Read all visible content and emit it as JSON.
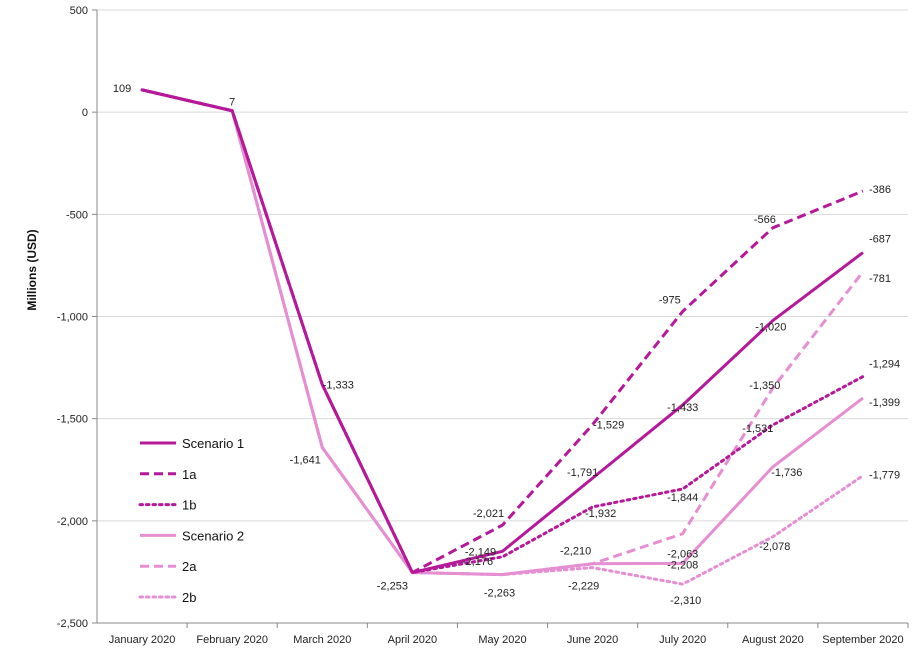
{
  "chart_data": {
    "type": "line",
    "title": "",
    "xlabel": "",
    "ylabel": "Millions (USD)",
    "ylim": [
      -2500,
      500
    ],
    "yticks": [
      500,
      0,
      -500,
      -1000,
      -1500,
      -2000,
      -2500
    ],
    "ytick_labels": [
      "500",
      "0",
      "-500",
      "-1,000",
      "-1,500",
      "-2,000",
      "-2,500"
    ],
    "grid": "horizontal",
    "legend_position": "bottom-left",
    "categories": [
      "January 2020",
      "February 2020",
      "March 2020",
      "April 2020",
      "May 2020",
      "June 2020",
      "July 2020",
      "August 2020",
      "September 2020"
    ],
    "series": [
      {
        "name": "Scenario 1",
        "color": "#b5199a",
        "style": "solid",
        "values": [
          109,
          7,
          -1333,
          -2253,
          -2149,
          -1791,
          -1433,
          -1020,
          -687
        ],
        "labels": [
          "109",
          "7",
          "-1,333",
          "-2,253",
          "-2,149",
          "-1,791",
          "-1,433",
          "-1,020",
          "-687"
        ]
      },
      {
        "name": "1a",
        "color": "#b5199a",
        "style": "dashed",
        "values": [
          109,
          7,
          -1333,
          -2253,
          -2021,
          -1529,
          -975,
          -566,
          -386
        ],
        "labels": [
          null,
          null,
          null,
          null,
          "-2,021",
          "-1,529",
          "-975",
          "-566",
          "-386"
        ]
      },
      {
        "name": "1b",
        "color": "#b5199a",
        "style": "dotted",
        "values": [
          109,
          7,
          -1333,
          -2253,
          -2176,
          -1932,
          -1844,
          -1531,
          -1294
        ],
        "labels": [
          null,
          null,
          null,
          null,
          "-2,176",
          "-1,932",
          "-1,844",
          "-1,531",
          "-1,294"
        ]
      },
      {
        "name": "Scenario 2",
        "color": "#e58ed2",
        "style": "solid",
        "values": [
          109,
          7,
          -1641,
          -2253,
          -2263,
          -2210,
          -2208,
          -1736,
          -1399
        ],
        "labels": [
          null,
          null,
          "-1,641",
          null,
          "-2,263",
          "-2,210",
          "-2,208",
          "-1,736",
          "-1,399"
        ]
      },
      {
        "name": "2a",
        "color": "#e58ed2",
        "style": "dashed",
        "values": [
          109,
          7,
          -1641,
          -2253,
          -2263,
          -2210,
          -2063,
          -1350,
          -781
        ],
        "labels": [
          null,
          null,
          null,
          null,
          null,
          null,
          "-2,063",
          "-1,350",
          "-781"
        ]
      },
      {
        "name": "2b",
        "color": "#e58ed2",
        "style": "dotted",
        "values": [
          109,
          7,
          -1641,
          -2253,
          -2263,
          -2229,
          -2310,
          -2078,
          -1779
        ],
        "labels": [
          null,
          null,
          null,
          null,
          null,
          "-2,229",
          "-2,310",
          "-2,078",
          "-1,779"
        ]
      }
    ]
  }
}
